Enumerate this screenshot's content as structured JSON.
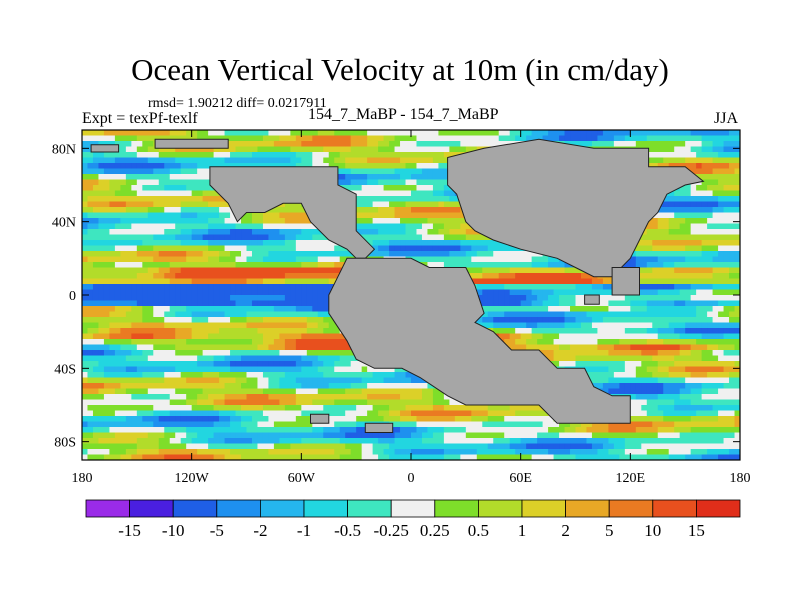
{
  "chart_data": {
    "type": "heatmap",
    "title": "Ocean Vertical Velocity at 10m (in cm/day)",
    "stats_text": "rmsd= 1.90212 diff= 0.0217911",
    "left_label": "Expt = texPf-texlf",
    "center_label": "154_7_MaBP - 154_7_MaBP",
    "right_label": "JJA",
    "xlim": [
      -180,
      180
    ],
    "ylim": [
      -90,
      90
    ],
    "x_ticks": [
      {
        "value": -180,
        "label": "180"
      },
      {
        "value": -120,
        "label": "120W"
      },
      {
        "value": -60,
        "label": "60W"
      },
      {
        "value": 0,
        "label": "0"
      },
      {
        "value": 60,
        "label": "60E"
      },
      {
        "value": 120,
        "label": "120E"
      },
      {
        "value": 180,
        "label": "180"
      }
    ],
    "y_ticks": [
      {
        "value": 80,
        "label": "80N"
      },
      {
        "value": 40,
        "label": "40N"
      },
      {
        "value": 0,
        "label": "0"
      },
      {
        "value": -40,
        "label": "40S"
      },
      {
        "value": -80,
        "label": "80S"
      }
    ],
    "colorbar": {
      "labels": [
        "-15",
        "-10",
        "-5",
        "-2",
        "-1",
        "-0.5",
        "-0.25",
        "0.25",
        "0.5",
        "1",
        "2",
        "5",
        "10",
        "15"
      ],
      "colors": [
        "#9a2be8",
        "#4a1fe0",
        "#1f5fe6",
        "#1e90ef",
        "#25b6ee",
        "#22d6e0",
        "#3ee6c0",
        "#f0f0f0",
        "#7ede2a",
        "#b2dc2a",
        "#dcd028",
        "#e8a826",
        "#ea7a22",
        "#e8501e",
        "#e02e1a"
      ]
    },
    "land_color": "#a6a6a6",
    "continents": [
      {
        "name": "north-america-europe",
        "lonlat": [
          [
            -100,
            70
          ],
          [
            -40,
            70
          ],
          [
            -40,
            60
          ],
          [
            -30,
            55
          ],
          [
            -30,
            35
          ],
          [
            -20,
            25
          ],
          [
            -25,
            20
          ],
          [
            -30,
            20
          ],
          [
            -35,
            25
          ],
          [
            -45,
            30
          ],
          [
            -55,
            40
          ],
          [
            -60,
            50
          ],
          [
            -70,
            50
          ],
          [
            -80,
            45
          ],
          [
            -90,
            45
          ],
          [
            -95,
            40
          ],
          [
            -100,
            50
          ],
          [
            -110,
            60
          ],
          [
            -110,
            70
          ]
        ]
      },
      {
        "name": "africa-south-america",
        "lonlat": [
          [
            -35,
            20
          ],
          [
            0,
            20
          ],
          [
            10,
            15
          ],
          [
            30,
            15
          ],
          [
            35,
            5
          ],
          [
            40,
            -10
          ],
          [
            35,
            -15
          ],
          [
            45,
            -20
          ],
          [
            55,
            -30
          ],
          [
            70,
            -30
          ],
          [
            80,
            -40
          ],
          [
            95,
            -40
          ],
          [
            100,
            -50
          ],
          [
            110,
            -55
          ],
          [
            120,
            -55
          ],
          [
            120,
            -70
          ],
          [
            80,
            -70
          ],
          [
            70,
            -60
          ],
          [
            60,
            -60
          ],
          [
            30,
            -60
          ],
          [
            20,
            -55
          ],
          [
            5,
            -45
          ],
          [
            -5,
            -40
          ],
          [
            -20,
            -40
          ],
          [
            -30,
            -35
          ],
          [
            -35,
            -25
          ],
          [
            -45,
            -10
          ],
          [
            -45,
            0
          ],
          [
            -40,
            10
          ]
        ]
      },
      {
        "name": "asia",
        "lonlat": [
          [
            20,
            60
          ],
          [
            20,
            75
          ],
          [
            40,
            80
          ],
          [
            70,
            85
          ],
          [
            100,
            80
          ],
          [
            130,
            80
          ],
          [
            130,
            70
          ],
          [
            150,
            70
          ],
          [
            160,
            62
          ],
          [
            150,
            60
          ],
          [
            140,
            55
          ],
          [
            135,
            45
          ],
          [
            130,
            40
          ],
          [
            125,
            30
          ],
          [
            120,
            20
          ],
          [
            110,
            10
          ],
          [
            100,
            10
          ],
          [
            90,
            15
          ],
          [
            80,
            20
          ],
          [
            60,
            25
          ],
          [
            45,
            30
          ],
          [
            35,
            35
          ],
          [
            30,
            40
          ],
          [
            25,
            55
          ]
        ]
      },
      {
        "name": "north-ridge-strip",
        "lonlat": [
          [
            -140,
            85
          ],
          [
            -100,
            85
          ],
          [
            -100,
            80
          ],
          [
            -140,
            80
          ]
        ]
      },
      {
        "name": "west-island",
        "lonlat": [
          [
            -175,
            82
          ],
          [
            -160,
            82
          ],
          [
            -160,
            78
          ],
          [
            -175,
            78
          ]
        ]
      },
      {
        "name": "eastern-block",
        "lonlat": [
          [
            110,
            15
          ],
          [
            125,
            15
          ],
          [
            125,
            0
          ],
          [
            110,
            0
          ]
        ]
      },
      {
        "name": "small-island-1",
        "lonlat": [
          [
            -55,
            -65
          ],
          [
            -45,
            -65
          ],
          [
            -45,
            -70
          ],
          [
            -55,
            -70
          ]
        ]
      },
      {
        "name": "small-island-2",
        "lonlat": [
          [
            -25,
            -70
          ],
          [
            -10,
            -70
          ],
          [
            -10,
            -75
          ],
          [
            -25,
            -75
          ]
        ]
      },
      {
        "name": "small-island-3",
        "lonlat": [
          [
            95,
            0
          ],
          [
            103,
            0
          ],
          [
            103,
            -5
          ],
          [
            95,
            -5
          ]
        ]
      }
    ]
  }
}
